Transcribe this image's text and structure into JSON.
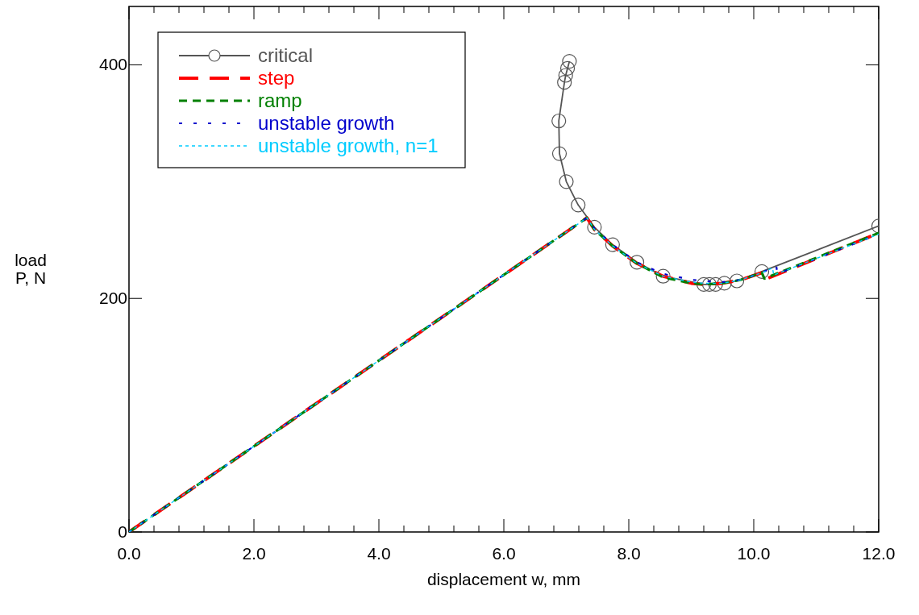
{
  "chart_data": {
    "type": "line",
    "xlabel": "displacement w, mm",
    "ylabel": "load\nP, N",
    "xlim": [
      0,
      12
    ],
    "ylim": [
      0,
      450
    ],
    "xticks": [
      {
        "value": 0,
        "label": "0.0"
      },
      {
        "value": 0.4,
        "label": null
      },
      {
        "value": 0.8,
        "label": null
      },
      {
        "value": 1.2,
        "label": null
      },
      {
        "value": 1.6,
        "label": null
      },
      {
        "value": 2,
        "label": "2.0"
      },
      {
        "value": 2.4,
        "label": null
      },
      {
        "value": 2.8,
        "label": null
      },
      {
        "value": 3.2,
        "label": null
      },
      {
        "value": 3.6,
        "label": null
      },
      {
        "value": 4,
        "label": "4.0"
      },
      {
        "value": 4.4,
        "label": null
      },
      {
        "value": 4.8,
        "label": null
      },
      {
        "value": 5.2,
        "label": null
      },
      {
        "value": 5.6,
        "label": null
      },
      {
        "value": 6,
        "label": "6.0"
      },
      {
        "value": 6.4,
        "label": null
      },
      {
        "value": 6.8,
        "label": null
      },
      {
        "value": 7.2,
        "label": null
      },
      {
        "value": 7.6,
        "label": null
      },
      {
        "value": 8,
        "label": "8.0"
      },
      {
        "value": 8.4,
        "label": null
      },
      {
        "value": 8.8,
        "label": null
      },
      {
        "value": 9.2,
        "label": null
      },
      {
        "value": 9.6,
        "label": null
      },
      {
        "value": 10,
        "label": "10.0"
      },
      {
        "value": 10.4,
        "label": null
      },
      {
        "value": 10.8,
        "label": null
      },
      {
        "value": 11.2,
        "label": null
      },
      {
        "value": 11.6,
        "label": null
      },
      {
        "value": 12,
        "label": "12.0"
      }
    ],
    "yticks": [
      0,
      200,
      400
    ],
    "grid": false,
    "legend": "top left",
    "series": [
      {
        "name": "critical",
        "color": "#555555",
        "marker": "circle",
        "line_style": "solid",
        "x": [
          7.05,
          7.02,
          6.99,
          6.97,
          6.88,
          6.89,
          7.0,
          7.19,
          7.45,
          7.74,
          8.13,
          8.55,
          9.2,
          9.29,
          9.39,
          9.53,
          9.73,
          10.13,
          12
        ],
        "values": [
          403,
          397,
          391,
          385,
          352,
          324,
          300,
          280,
          261,
          246,
          231,
          219,
          212,
          212,
          212,
          213,
          215,
          223,
          262
        ]
      },
      {
        "name": "step",
        "color": "#ff0000",
        "marker": "none",
        "line_style": "dashed",
        "x": [
          0,
          7.33,
          7.45,
          7.74,
          8.13,
          8.55,
          9.0,
          9.2,
          9.5,
          9.8,
          10.13,
          10.17,
          12
        ],
        "values": [
          0,
          269,
          259,
          245,
          230,
          219,
          213,
          212,
          213,
          216,
          222,
          216,
          256
        ]
      },
      {
        "name": "ramp",
        "color": "#008000",
        "marker": "none",
        "line_style": "dashed",
        "x": [
          0,
          7.33,
          7.45,
          7.74,
          8.13,
          8.55,
          9.0,
          9.2,
          9.5,
          9.8,
          10.13,
          10.17,
          12
        ],
        "values": [
          0,
          269,
          259,
          245,
          230,
          218,
          213,
          212,
          213,
          216,
          222,
          217,
          256
        ]
      },
      {
        "name": "unstable growth",
        "color": "#0000cc",
        "marker": "none",
        "line_style": "dotted",
        "x": [
          0,
          7.33,
          7.45,
          7.74,
          8.13,
          8.55,
          9.0,
          9.2,
          9.5,
          9.8,
          10.13,
          10.36,
          10.38,
          12
        ],
        "values": [
          0,
          269,
          260,
          246,
          231,
          221,
          216,
          215,
          214,
          216,
          222,
          228,
          221,
          255
        ]
      },
      {
        "name": "unstable growth, n=1",
        "color": "#00ccff",
        "marker": "none",
        "line_style": "dotted",
        "x": [
          0,
          7.33,
          7.45,
          7.74,
          8.13,
          8.55,
          9.0,
          9.2,
          9.5,
          9.8,
          10.13,
          10.3,
          10.32,
          12
        ],
        "values": [
          0,
          269,
          259,
          245,
          230,
          219,
          214,
          213,
          213,
          216,
          222,
          226,
          220,
          255
        ]
      }
    ]
  }
}
